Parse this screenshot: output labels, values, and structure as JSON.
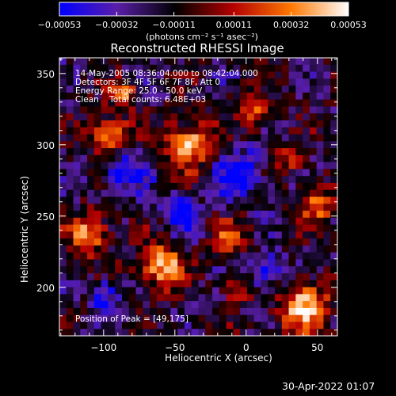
{
  "chart_data": {
    "type": "heatmap",
    "title": "Reconstructed RHESSI Image",
    "xlabel": "Heliocentric X (arcsec)",
    "ylabel": "Heliocentric Y (arcsec)",
    "xlim": [
      -131,
      64
    ],
    "ylim": [
      166,
      361
    ],
    "xticks": [
      -100,
      -50,
      0,
      50
    ],
    "xtick_labels": [
      "−100",
      "−50",
      "0",
      "50"
    ],
    "yticks": [
      200,
      250,
      300,
      350
    ],
    "ytick_labels": [
      "200",
      "250",
      "300",
      "350"
    ],
    "colorbar": {
      "min": -0.00053,
      "max": 0.00053,
      "ticks": [
        -0.00053,
        -0.00032,
        -0.00011,
        0.00011,
        0.00032,
        0.00053
      ],
      "tick_labels": [
        "−0.00053",
        "−0.00032",
        "−0.00011",
        "0.00011",
        "0.00032",
        "0.00053"
      ],
      "units": "(photons cm⁻² s⁻¹ asec⁻²)",
      "placement": "top",
      "colormap": [
        "#0000ff",
        "#5a1ea8",
        "#000000",
        "#b40000",
        "#ff7800",
        "#ffffff"
      ]
    },
    "annotations": {
      "time_range": "14-May-2005 08:36:04.000 to 08:42:04.000",
      "detectors": "Detectors: 3F 4F 5F 6F 7F 8F, Att 0",
      "energy": "Energy Range: 25.0 - 50.0 keV",
      "clean": "Clean",
      "total_counts": "Total counts: 6.48E+03",
      "peak": "Position of Peak = [49,175]"
    },
    "peak_position": [
      49,
      175
    ]
  },
  "footer": {
    "timestamp": "30-Apr-2022 01:07"
  }
}
